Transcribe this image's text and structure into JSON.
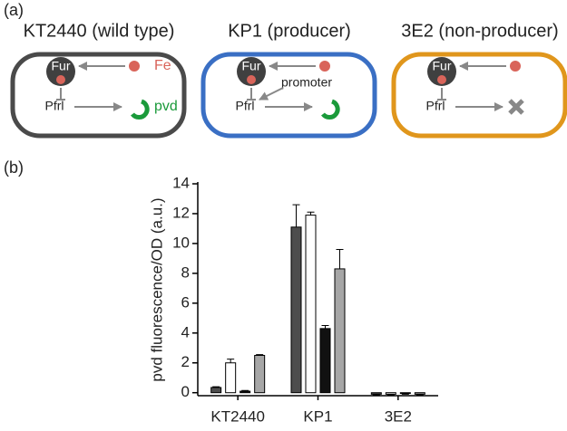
{
  "panel_labels": [
    "(a)",
    "(b)"
  ],
  "diagram": {
    "cells": [
      {
        "title": "KT2440 (wild type)",
        "color": "#4a4a4a",
        "repressor": "Fur",
        "iron": "Fe",
        "promoter": "Pfrl",
        "product": "pvd"
      },
      {
        "title": "KP1 (producer)",
        "color": "#3a6fc4",
        "repressor": "Fur",
        "note": "promoter",
        "promoter": "Pfrl"
      },
      {
        "title": "3E2 (non-producer)",
        "color": "#e0961c",
        "repressor": "Fur",
        "promoter": "Pfrl"
      }
    ]
  },
  "chart_data": {
    "type": "bar",
    "y_label": "pvd fluorescence/OD (a.u.)",
    "categories": [
      "KT2440",
      "KP1",
      "3E2"
    ],
    "series": [
      {
        "color": "#4d4d4d",
        "values": [
          0.35,
          11.1,
          -0.1
        ],
        "errors": [
          0.05,
          1.5,
          0.05
        ]
      },
      {
        "color": "#ffffff",
        "values": [
          2.0,
          11.9,
          -0.1
        ],
        "errors": [
          0.25,
          0.2,
          0.05
        ]
      },
      {
        "color": "#111111",
        "values": [
          0.1,
          4.3,
          -0.05
        ],
        "errors": [
          0.05,
          0.2,
          0.05
        ]
      },
      {
        "color": "#a6a6a6",
        "values": [
          2.5,
          8.3,
          -0.1
        ],
        "errors": [
          0.05,
          1.3,
          0.05
        ]
      }
    ],
    "ylim": [
      -0.2,
      14
    ],
    "yticks": [
      0,
      2,
      4,
      6,
      8,
      10,
      12,
      14
    ]
  }
}
